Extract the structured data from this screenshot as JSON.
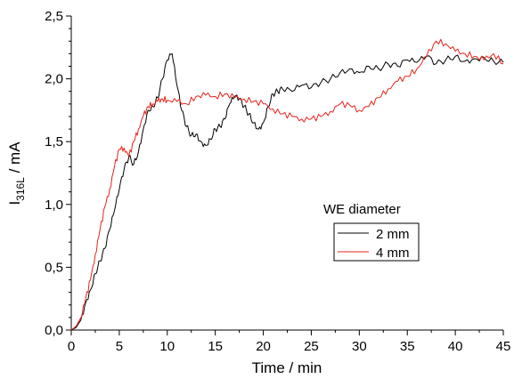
{
  "chart_data": {
    "type": "line",
    "title": "",
    "xlabel": "Time / min",
    "ylabel_main": "I",
    "ylabel_sub": "316L",
    "ylabel_unit": " / mA",
    "xlim": [
      0,
      45
    ],
    "ylim": [
      0,
      2.5
    ],
    "xticks": [
      0,
      5,
      10,
      15,
      20,
      25,
      30,
      35,
      40,
      45
    ],
    "yticks": [
      0,
      0.5,
      1.0,
      1.5,
      2.0,
      2.5
    ],
    "xtick_labels": [
      "0",
      "5",
      "10",
      "15",
      "20",
      "25",
      "30",
      "35",
      "40",
      "45"
    ],
    "ytick_labels": [
      "0,0",
      "0,5",
      "1,0",
      "1,5",
      "2,0",
      "2,5"
    ],
    "legend": {
      "title": "WE diameter",
      "placement": "right-middle"
    },
    "grid": false,
    "series": [
      {
        "name": "2 mm",
        "color": "#000000",
        "x": [
          0,
          0.5,
          1,
          1.5,
          2,
          2.5,
          3,
          3.5,
          4,
          4.5,
          5,
          5.5,
          6,
          6.5,
          7,
          7.5,
          8,
          8.5,
          9,
          9.5,
          10,
          10.5,
          11,
          11.5,
          12,
          12.5,
          13,
          13.5,
          14,
          14.5,
          15,
          15.5,
          16,
          16.5,
          17,
          17.5,
          18,
          18.5,
          19,
          19.5,
          20,
          20.5,
          21,
          21.5,
          22,
          23,
          24,
          25,
          26,
          27,
          28,
          29,
          30,
          31,
          32,
          33,
          34,
          35,
          36,
          37,
          38,
          39,
          40,
          41,
          42,
          43,
          44,
          45
        ],
        "values": [
          0.0,
          0.02,
          0.08,
          0.22,
          0.32,
          0.45,
          0.55,
          0.65,
          0.8,
          0.95,
          1.12,
          1.28,
          1.38,
          1.32,
          1.42,
          1.6,
          1.75,
          1.78,
          1.85,
          2.0,
          2.15,
          2.2,
          1.95,
          1.75,
          1.62,
          1.55,
          1.56,
          1.5,
          1.47,
          1.52,
          1.6,
          1.62,
          1.68,
          1.8,
          1.86,
          1.84,
          1.78,
          1.72,
          1.65,
          1.6,
          1.65,
          1.78,
          1.88,
          1.9,
          1.92,
          1.9,
          1.95,
          1.93,
          1.97,
          2.0,
          2.05,
          2.08,
          2.05,
          2.1,
          2.08,
          2.12,
          2.1,
          2.15,
          2.13,
          2.18,
          2.12,
          2.15,
          2.18,
          2.14,
          2.16,
          2.17,
          2.14,
          2.13
        ]
      },
      {
        "name": "4 mm",
        "color": "#e8231b",
        "x": [
          0,
          0.5,
          1,
          1.5,
          2,
          2.5,
          3,
          3.5,
          4,
          4.5,
          5,
          5.5,
          6,
          6.5,
          7,
          7.5,
          8,
          8.5,
          9,
          9.5,
          10,
          11,
          12,
          13,
          14,
          15,
          16,
          17,
          18,
          19,
          20,
          21,
          22,
          23,
          24,
          25,
          26,
          27,
          28,
          29,
          30,
          31,
          32,
          33,
          34,
          35,
          36,
          37,
          38,
          39,
          40,
          41,
          42,
          43,
          44,
          45
        ],
        "values": [
          0.0,
          0.03,
          0.1,
          0.25,
          0.4,
          0.6,
          0.8,
          0.98,
          1.12,
          1.3,
          1.44,
          1.45,
          1.38,
          1.5,
          1.6,
          1.7,
          1.78,
          1.8,
          1.82,
          1.84,
          1.83,
          1.82,
          1.8,
          1.86,
          1.87,
          1.86,
          1.88,
          1.85,
          1.84,
          1.82,
          1.8,
          1.76,
          1.72,
          1.7,
          1.68,
          1.68,
          1.7,
          1.74,
          1.8,
          1.79,
          1.75,
          1.78,
          1.85,
          1.92,
          1.98,
          2.02,
          2.08,
          2.18,
          2.3,
          2.28,
          2.22,
          2.2,
          2.18,
          2.15,
          2.2,
          2.12
        ]
      }
    ]
  }
}
